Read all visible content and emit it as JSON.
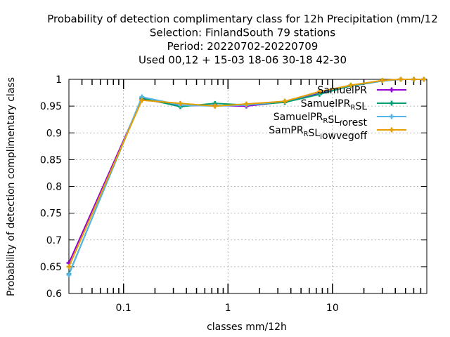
{
  "chart_data": {
    "type": "line",
    "title_lines": [
      "Probability of detection complimentary class  for 12h Precipitation (mm/12",
      "Selection: FinlandSouth     79 stations",
      "Period: 20220702-20220709",
      "Used  00,12  + 15-03 18-06 30-18 42-30"
    ],
    "xlabel": "classes mm/12h",
    "ylabel": "Probability of detection complimentary class",
    "x_scale": "log",
    "xlim": [
      0.03,
      80
    ],
    "ylim": [
      0.6,
      1.0
    ],
    "y_ticks": [
      0.6,
      0.65,
      0.7,
      0.75,
      0.8,
      0.85,
      0.9,
      0.95,
      1.0
    ],
    "y_tick_labels": [
      "0.6",
      "0.65",
      "0.7",
      "0.75",
      "0.8",
      "0.85",
      "0.9",
      "0.95",
      "1"
    ],
    "x_ticks": [
      0.1,
      1,
      10
    ],
    "x_tick_labels": [
      "0.1",
      "1",
      "10"
    ],
    "grid": true,
    "legend_position": "top-right",
    "x": [
      0.03,
      0.15,
      0.35,
      0.75,
      1.5,
      3.5,
      7.5,
      15,
      30,
      45,
      60,
      75
    ],
    "series": [
      {
        "name": "SamuelPR",
        "color": "#9400d3",
        "marker": "plus",
        "values": [
          0.657,
          0.963,
          0.951,
          0.951,
          0.95,
          0.958,
          0.974,
          0.988,
          0.997,
          1.0,
          1.0,
          1.0
        ]
      },
      {
        "name": "SamuelPR_RSL",
        "color": "#009e73",
        "marker": "plus",
        "values": [
          0.636,
          0.965,
          0.949,
          0.955,
          0.952,
          0.957,
          0.972,
          0.988,
          0.997,
          1.0,
          1.0,
          1.0
        ]
      },
      {
        "name": "SamuelPR_RSL_forest",
        "color": "#56b4e9",
        "marker": "plus",
        "values": [
          0.635,
          0.967,
          0.952,
          0.95,
          0.952,
          0.959,
          0.976,
          0.989,
          0.997,
          1.0,
          1.0,
          1.0
        ]
      },
      {
        "name": "SamPR_RSL_lowvegoff",
        "color": "#e69f00",
        "marker": "plus",
        "values": [
          0.65,
          0.961,
          0.955,
          0.95,
          0.954,
          0.959,
          0.977,
          0.989,
          0.998,
          1.0,
          1.0,
          1.0
        ]
      }
    ]
  }
}
